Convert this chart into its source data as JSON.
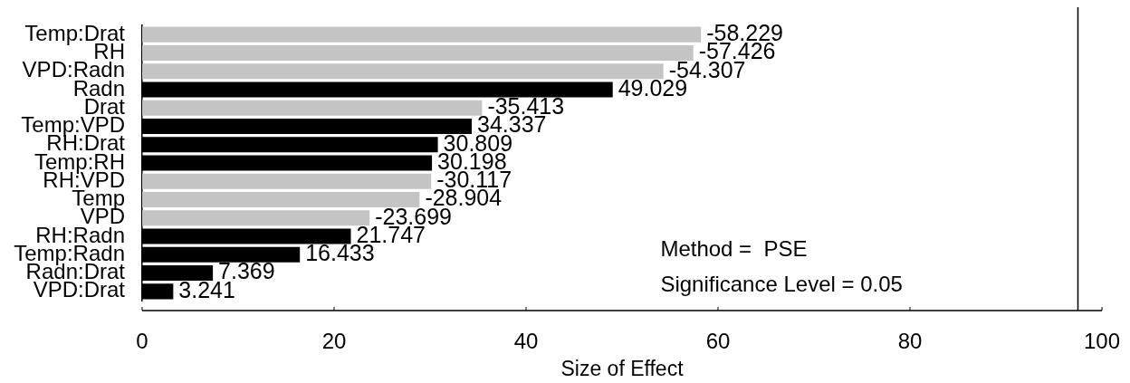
{
  "chart_data": {
    "type": "bar",
    "orientation": "horizontal",
    "categories": [
      "Temp:Drat",
      "RH",
      "VPD:Radn",
      "Radn",
      "Drat",
      "Temp:VPD",
      "RH:Drat",
      "Temp:RH",
      "RH:VPD",
      "Temp",
      "VPD",
      "RH:Radn",
      "Temp:Radn",
      "Radn:Drat",
      "VPD:Drat"
    ],
    "values": [
      -58.229,
      -57.426,
      -54.307,
      49.029,
      -35.413,
      34.337,
      30.809,
      30.198,
      -30.117,
      -28.904,
      -23.699,
      21.747,
      16.433,
      7.369,
      3.241
    ],
    "base": [
      58.229,
      57.426,
      54.307,
      0,
      35.413,
      0,
      0,
      0,
      30.117,
      28.904,
      23.699,
      0,
      0,
      0,
      0
    ],
    "colors": [
      "#c4c4c4",
      "#c4c4c4",
      "#c4c4c4",
      "#000000",
      "#c4c4c4",
      "#000000",
      "#000000",
      "#000000",
      "#c4c4c4",
      "#c4c4c4",
      "#c4c4c4",
      "#000000",
      "#000000",
      "#000000",
      "#000000"
    ],
    "data_labels": true,
    "xlim": [
      0,
      100
    ],
    "xticks": [
      0,
      20,
      40,
      60,
      80,
      100
    ],
    "xlabel": "Size of Effect",
    "ref_lines": [
      {
        "axis": "x",
        "value": 97.5,
        "color": "#000000"
      }
    ],
    "annotations": [
      "Method =  PSE",
      "Significance Level = 0.05"
    ]
  }
}
